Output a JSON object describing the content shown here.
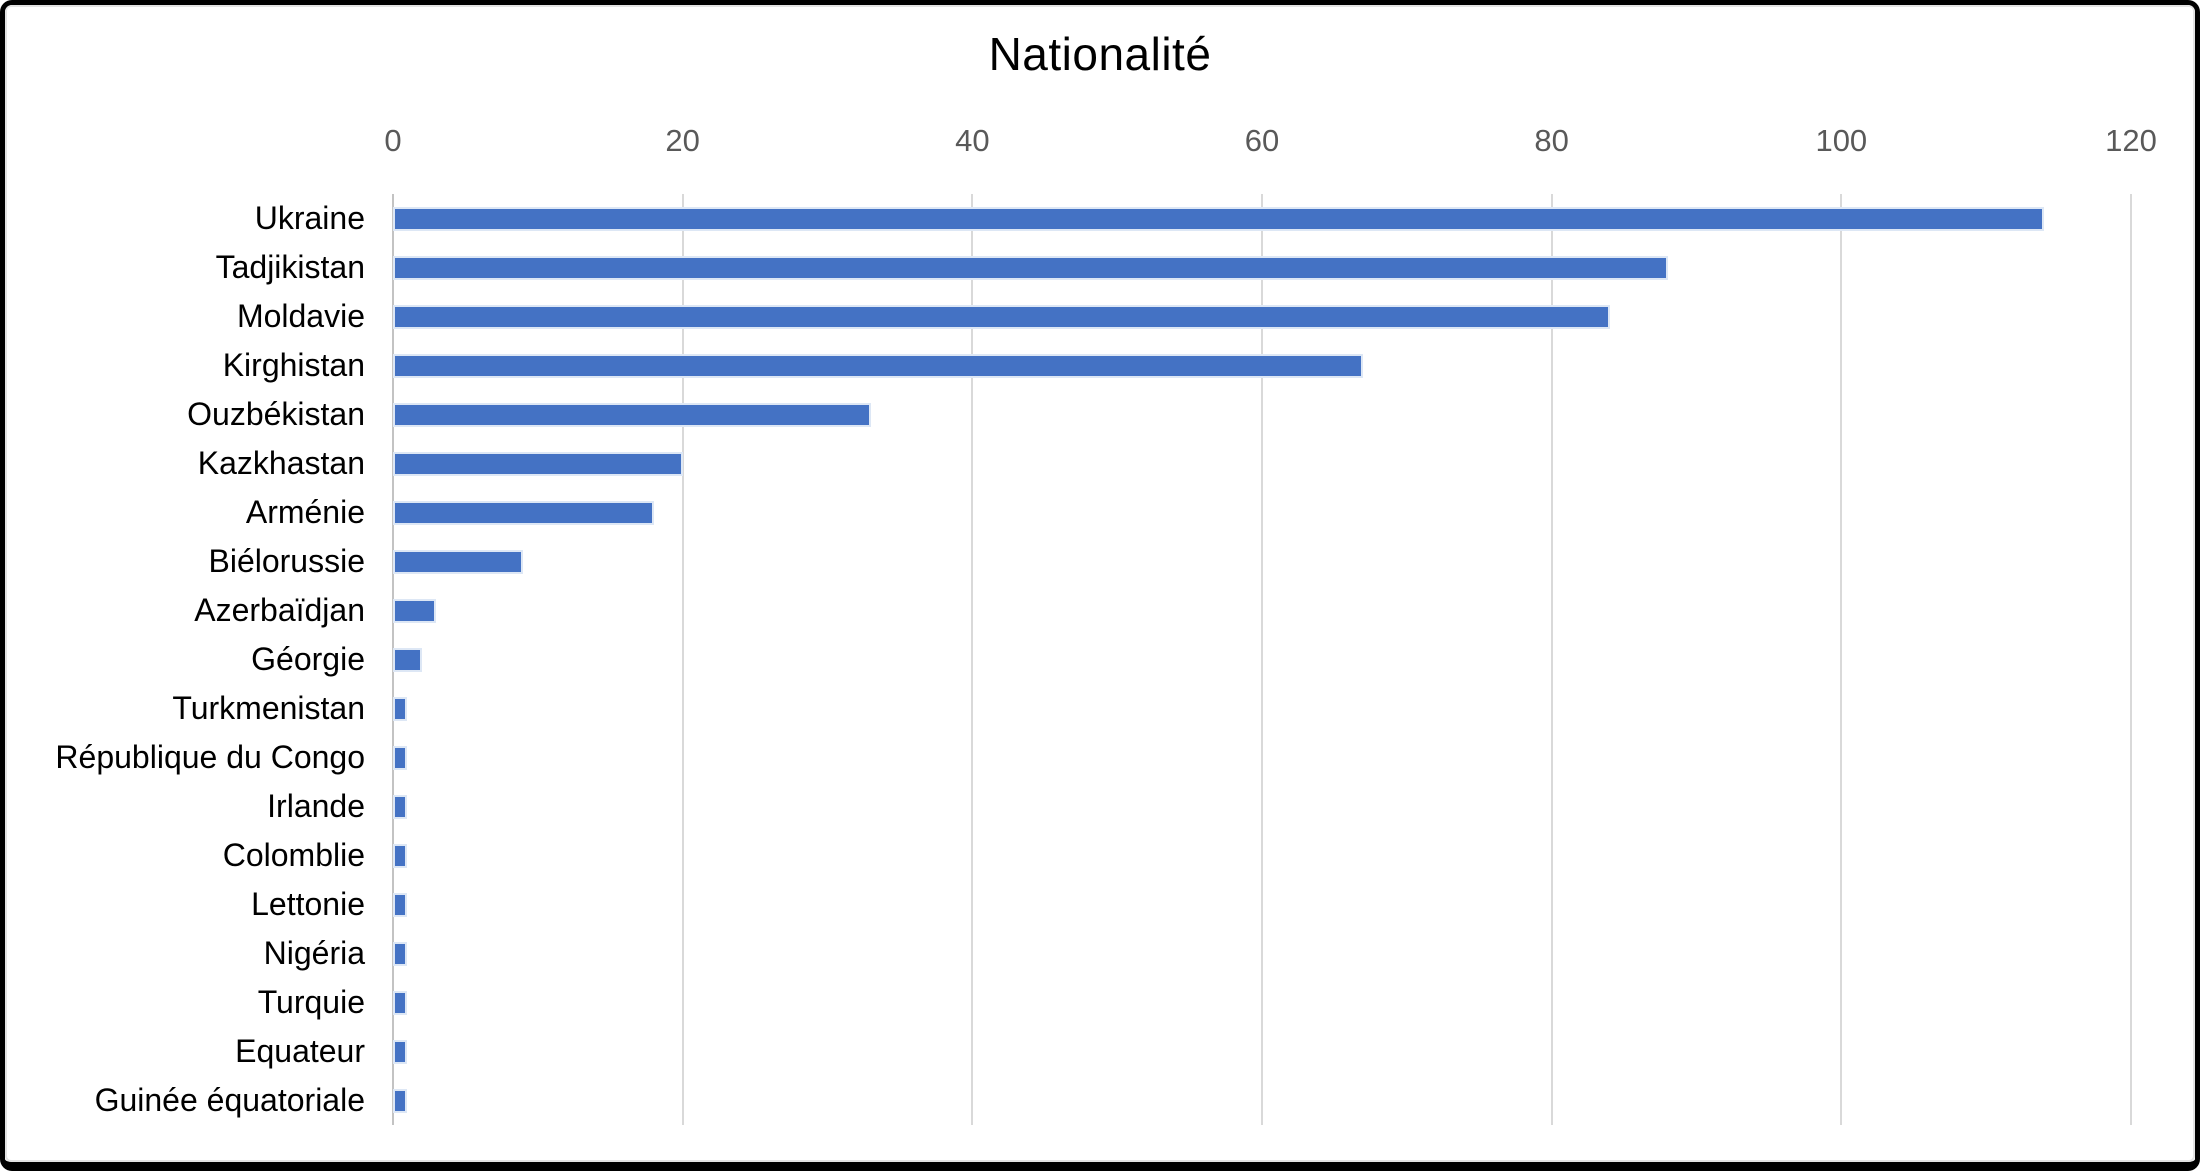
{
  "title": "Nationalité",
  "chart_data": {
    "type": "bar",
    "orientation": "horizontal",
    "title": "Nationalité",
    "categories": [
      "Ukraine",
      "Tadjikistan",
      "Moldavie",
      "Kirghistan",
      "Ouzbékistan",
      "Kazkhastan",
      "Arménie",
      "Biélorussie",
      "Azerbaïdjan",
      "Géorgie",
      "Turkmenistan",
      "République du Congo",
      "Irlande",
      "Colomblie",
      "Lettonie",
      "Nigéria",
      "Turquie",
      "Equateur",
      "Guinée équatoriale"
    ],
    "values": [
      114,
      88,
      84,
      67,
      33,
      20,
      18,
      9,
      3,
      2,
      1,
      1,
      1,
      1,
      1,
      1,
      1,
      1,
      1
    ],
    "xlim": [
      0,
      120
    ],
    "xticks": [
      0,
      20,
      40,
      60,
      80,
      100,
      120
    ],
    "tick_labels": [
      "0",
      "20",
      "40",
      "60",
      "80",
      "100",
      "120"
    ],
    "grid": "vertical-gridlines-on",
    "legend": "none",
    "colors": {
      "bar_fill": "#4472C4",
      "bar_border": "#dde7f5",
      "gridline": "#d9d9d9",
      "axis_line": "#c3c3c3",
      "tick_label": "#595959",
      "category_label": "#000000",
      "title": "#000000",
      "frame_border": "#000000",
      "background": "#ffffff"
    }
  }
}
